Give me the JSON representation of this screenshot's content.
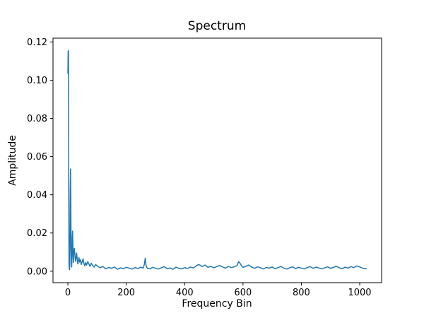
{
  "figure": {
    "background": "#ffffff"
  },
  "chart_data": {
    "type": "line",
    "title": "Spectrum",
    "xlabel": "Frequency Bin",
    "ylabel": "Amplitude",
    "line_color": "#1f77b4",
    "line_width": 1.5,
    "grid": false,
    "legend": null,
    "xlim": [
      -51,
      1075
    ],
    "ylim": [
      -0.006,
      0.122
    ],
    "x_ticks": [
      0,
      200,
      400,
      600,
      800,
      1000
    ],
    "x_tick_labels": [
      "0",
      "200",
      "400",
      "600",
      "800",
      "1000"
    ],
    "y_ticks": [
      0.0,
      0.02,
      0.04,
      0.06,
      0.08,
      0.1,
      0.12
    ],
    "y_tick_labels": [
      "0.00",
      "0.02",
      "0.04",
      "0.06",
      "0.08",
      "0.10",
      "0.12"
    ],
    "points": [
      [
        0,
        0.1035
      ],
      [
        1,
        0.1152
      ],
      [
        2,
        0.1155
      ],
      [
        3,
        0.0421
      ],
      [
        4,
        0.0035
      ],
      [
        5,
        0.0012
      ],
      [
        6,
        0.0008
      ],
      [
        7,
        0.0105
      ],
      [
        8,
        0.042
      ],
      [
        9,
        0.0535
      ],
      [
        10,
        0.039
      ],
      [
        11,
        0.012
      ],
      [
        12,
        0.004
      ],
      [
        13,
        0.0022
      ],
      [
        14,
        0.0065
      ],
      [
        15,
        0.018
      ],
      [
        16,
        0.021
      ],
      [
        17,
        0.0155
      ],
      [
        18,
        0.008
      ],
      [
        19,
        0.0045
      ],
      [
        20,
        0.009
      ],
      [
        22,
        0.012
      ],
      [
        24,
        0.0085
      ],
      [
        26,
        0.0052
      ],
      [
        28,
        0.007
      ],
      [
        30,
        0.0095
      ],
      [
        32,
        0.006
      ],
      [
        34,
        0.0038
      ],
      [
        36,
        0.0055
      ],
      [
        38,
        0.0072
      ],
      [
        40,
        0.0048
      ],
      [
        43,
        0.006
      ],
      [
        46,
        0.0035
      ],
      [
        49,
        0.005
      ],
      [
        52,
        0.0065
      ],
      [
        55,
        0.004
      ],
      [
        58,
        0.0028
      ],
      [
        61,
        0.0045
      ],
      [
        64,
        0.0032
      ],
      [
        68,
        0.005
      ],
      [
        72,
        0.0038
      ],
      [
        76,
        0.0025
      ],
      [
        80,
        0.0042
      ],
      [
        85,
        0.003
      ],
      [
        90,
        0.0022
      ],
      [
        95,
        0.0035
      ],
      [
        100,
        0.0028
      ],
      [
        110,
        0.0018
      ],
      [
        120,
        0.0025
      ],
      [
        130,
        0.0012
      ],
      [
        140,
        0.002
      ],
      [
        150,
        0.0015
      ],
      [
        160,
        0.0022
      ],
      [
        170,
        0.001
      ],
      [
        180,
        0.0018
      ],
      [
        190,
        0.0013
      ],
      [
        200,
        0.002
      ],
      [
        210,
        0.0016
      ],
      [
        220,
        0.0011
      ],
      [
        230,
        0.0019
      ],
      [
        240,
        0.0014
      ],
      [
        250,
        0.0021
      ],
      [
        258,
        0.0016
      ],
      [
        262,
        0.0035
      ],
      [
        265,
        0.0068
      ],
      [
        268,
        0.003
      ],
      [
        272,
        0.0015
      ],
      [
        280,
        0.0012
      ],
      [
        290,
        0.002
      ],
      [
        300,
        0.0016
      ],
      [
        310,
        0.0011
      ],
      [
        320,
        0.0018
      ],
      [
        330,
        0.0024
      ],
      [
        340,
        0.0013
      ],
      [
        350,
        0.0017
      ],
      [
        360,
        0.001
      ],
      [
        370,
        0.0021
      ],
      [
        380,
        0.0015
      ],
      [
        390,
        0.0012
      ],
      [
        400,
        0.0019
      ],
      [
        410,
        0.0014
      ],
      [
        420,
        0.0022
      ],
      [
        430,
        0.0017
      ],
      [
        440,
        0.0028
      ],
      [
        448,
        0.0035
      ],
      [
        455,
        0.003
      ],
      [
        460,
        0.0024
      ],
      [
        470,
        0.0032
      ],
      [
        480,
        0.002
      ],
      [
        490,
        0.0026
      ],
      [
        500,
        0.0018
      ],
      [
        510,
        0.0024
      ],
      [
        520,
        0.003
      ],
      [
        530,
        0.0022
      ],
      [
        540,
        0.0016
      ],
      [
        550,
        0.0025
      ],
      [
        560,
        0.0019
      ],
      [
        570,
        0.0023
      ],
      [
        580,
        0.003
      ],
      [
        585,
        0.005
      ],
      [
        590,
        0.0042
      ],
      [
        595,
        0.0028
      ],
      [
        600,
        0.002
      ],
      [
        610,
        0.0026
      ],
      [
        620,
        0.0032
      ],
      [
        630,
        0.0021
      ],
      [
        640,
        0.0015
      ],
      [
        650,
        0.0023
      ],
      [
        660,
        0.0018
      ],
      [
        670,
        0.0012
      ],
      [
        680,
        0.002
      ],
      [
        690,
        0.0016
      ],
      [
        700,
        0.0022
      ],
      [
        710,
        0.0013
      ],
      [
        720,
        0.0019
      ],
      [
        730,
        0.0025
      ],
      [
        740,
        0.0016
      ],
      [
        750,
        0.0011
      ],
      [
        760,
        0.0018
      ],
      [
        770,
        0.0023
      ],
      [
        780,
        0.0014
      ],
      [
        790,
        0.002
      ],
      [
        800,
        0.0016
      ],
      [
        810,
        0.0012
      ],
      [
        820,
        0.0019
      ],
      [
        830,
        0.0024
      ],
      [
        840,
        0.0015
      ],
      [
        850,
        0.0021
      ],
      [
        860,
        0.0017
      ],
      [
        870,
        0.0012
      ],
      [
        880,
        0.0018
      ],
      [
        890,
        0.0023
      ],
      [
        900,
        0.0015
      ],
      [
        910,
        0.002
      ],
      [
        920,
        0.0026
      ],
      [
        930,
        0.0018
      ],
      [
        940,
        0.0013
      ],
      [
        950,
        0.0021
      ],
      [
        960,
        0.0016
      ],
      [
        970,
        0.0024
      ],
      [
        980,
        0.0019
      ],
      [
        990,
        0.0028
      ],
      [
        1000,
        0.0022
      ],
      [
        1010,
        0.0016
      ],
      [
        1023,
        0.0013
      ]
    ]
  }
}
